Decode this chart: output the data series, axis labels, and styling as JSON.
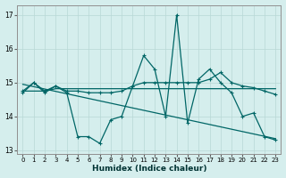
{
  "background_color": "#d5eeed",
  "grid_color": "#b8d8d5",
  "line_color": "#006666",
  "xlabel": "Humidex (Indice chaleur)",
  "xlim": [
    -0.5,
    23.5
  ],
  "ylim": [
    12.9,
    17.3
  ],
  "yticks": [
    13,
    14,
    15,
    16,
    17
  ],
  "xticks": [
    0,
    1,
    2,
    3,
    4,
    5,
    6,
    7,
    8,
    9,
    10,
    11,
    12,
    13,
    14,
    15,
    16,
    17,
    18,
    19,
    20,
    21,
    22,
    23
  ],
  "y_zigzag": [
    14.7,
    15.0,
    14.7,
    14.9,
    14.7,
    13.4,
    13.4,
    13.2,
    13.9,
    14.0,
    14.9,
    15.8,
    15.4,
    14.0,
    17.0,
    13.8,
    15.1,
    15.4,
    15.0,
    14.7,
    14.0,
    14.1,
    13.4,
    13.3
  ],
  "y_smooth": [
    14.75,
    15.0,
    14.75,
    14.9,
    14.75,
    14.75,
    14.7,
    14.7,
    14.7,
    14.75,
    14.9,
    15.0,
    15.0,
    15.0,
    15.0,
    15.0,
    15.0,
    15.1,
    15.3,
    15.0,
    14.9,
    14.85,
    14.75,
    14.65
  ],
  "y_flat": [
    14.75,
    14.75,
    14.75,
    14.82,
    14.82,
    14.82,
    14.82,
    14.82,
    14.82,
    14.82,
    14.82,
    14.82,
    14.82,
    14.82,
    14.82,
    14.82,
    14.82,
    14.82,
    14.82,
    14.82,
    14.82,
    14.82,
    14.82,
    14.82
  ],
  "y_trend": [
    14.95,
    14.88,
    14.81,
    14.74,
    14.67,
    14.6,
    14.53,
    14.46,
    14.39,
    14.32,
    14.25,
    14.18,
    14.11,
    14.04,
    13.97,
    13.9,
    13.83,
    13.76,
    13.69,
    13.62,
    13.55,
    13.48,
    13.41,
    13.34
  ]
}
